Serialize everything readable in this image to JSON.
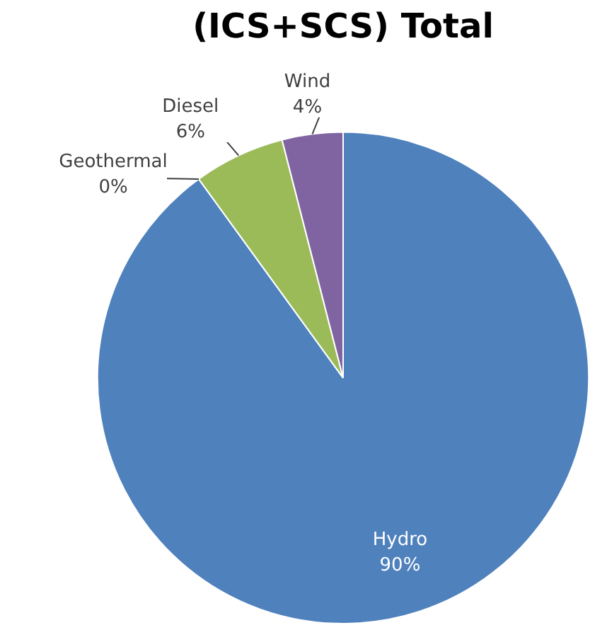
{
  "chart_data": {
    "type": "pie",
    "title": "(ICS+SCS) Total",
    "categories": [
      "Hydro",
      "Geothermal",
      "Diesel",
      "Wind"
    ],
    "values": [
      90,
      0,
      6,
      4
    ],
    "colors": [
      "#4f81bd",
      "#c0504d",
      "#9bbb59",
      "#8064a2"
    ],
    "value_labels": [
      "90%",
      "0%",
      "6%",
      "4%"
    ],
    "legend": false
  }
}
